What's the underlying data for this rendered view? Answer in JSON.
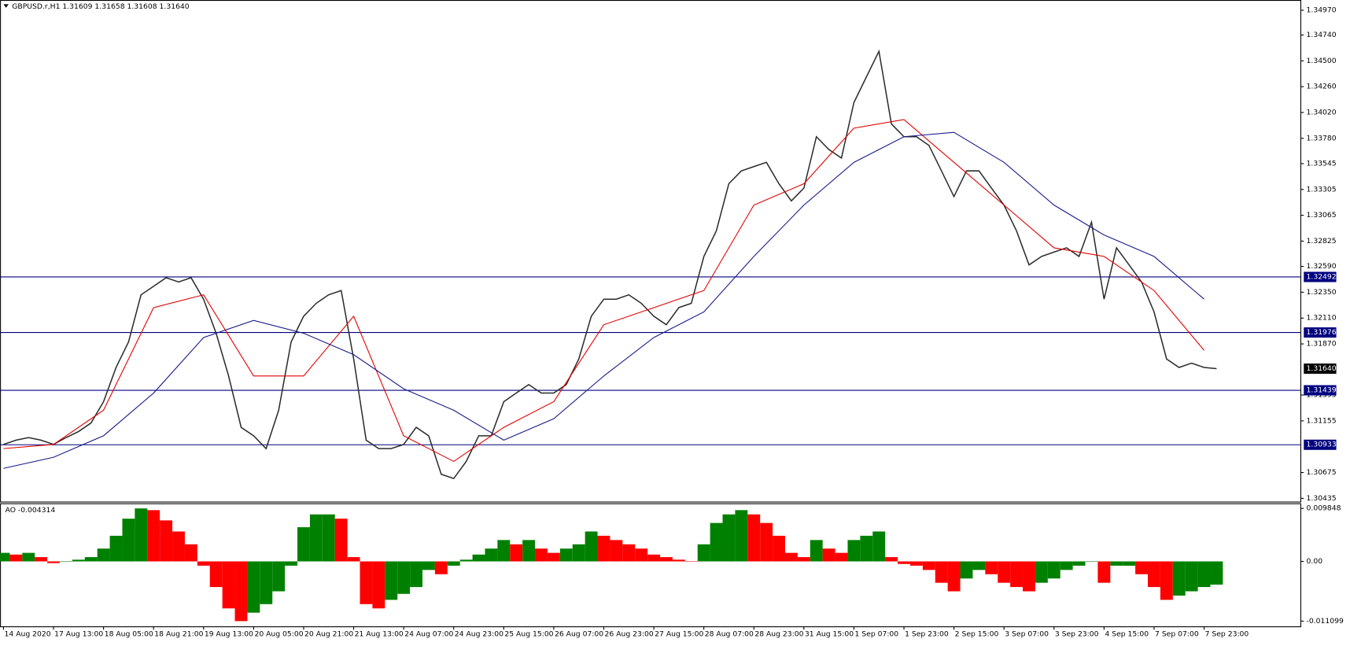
{
  "chart_data": [
    {
      "type": "line",
      "title": "GBPUSD.r,H1  1.31609 1.31658 1.31608 1.31640",
      "xlim": [
        -1.1,
        414.8
      ],
      "ylim": [
        1.30405,
        1.35065
      ],
      "xticks": [
        {
          "value": 0,
          "label": "14 Aug 2020"
        },
        {
          "value": 16,
          "label": "17 Aug 13:00"
        },
        {
          "value": 32,
          "label": "18 Aug 05:00"
        },
        {
          "value": 48,
          "label": "18 Aug 21:00"
        },
        {
          "value": 64,
          "label": "19 Aug 13:00"
        },
        {
          "value": 80,
          "label": "20 Aug 05:00"
        },
        {
          "value": 96,
          "label": "20 Aug 21:00"
        },
        {
          "value": 112,
          "label": "21 Aug 13:00"
        },
        {
          "value": 128,
          "label": "24 Aug 07:00"
        },
        {
          "value": 144,
          "label": "24 Aug 23:00"
        },
        {
          "value": 160,
          "label": "25 Aug 15:00"
        },
        {
          "value": 176,
          "label": "26 Aug 07:00"
        },
        {
          "value": 192,
          "label": "26 Aug 23:00"
        },
        {
          "value": 208,
          "label": "27 Aug 15:00"
        },
        {
          "value": 224,
          "label": "28 Aug 07:00"
        },
        {
          "value": 240,
          "label": "28 Aug 23:00"
        },
        {
          "value": 256,
          "label": "31 Aug 15:00"
        },
        {
          "value": 272,
          "label": "1 Sep 07:00"
        },
        {
          "value": 288,
          "label": "1 Sep 23:00"
        },
        {
          "value": 304,
          "label": "2 Sep 15:00"
        },
        {
          "value": 320,
          "label": "3 Sep 07:00"
        },
        {
          "value": 336,
          "label": "3 Sep 23:00"
        },
        {
          "value": 352,
          "label": "4 Sep 15:00"
        },
        {
          "value": 368,
          "label": "7 Sep 07:00"
        },
        {
          "value": 384,
          "label": "7 Sep 23:00"
        }
      ],
      "yticks": [
        {
          "value": 1.3497,
          "label": "1.34970"
        },
        {
          "value": 1.3474,
          "label": "1.34740"
        },
        {
          "value": 1.345,
          "label": "1.34500"
        },
        {
          "value": 1.3426,
          "label": "1.34260"
        },
        {
          "value": 1.3402,
          "label": "1.34020"
        },
        {
          "value": 1.3378,
          "label": "1.33780"
        },
        1.33545,
        1.33305,
        1.33065,
        1.32825,
        {
          "value": 1.3259,
          "label": "1.32590"
        },
        {
          "value": 1.3235,
          "label": "1.32350"
        },
        {
          "value": 1.3211,
          "label": "1.32110"
        },
        {
          "value": 1.3187,
          "label": "1.31870"
        },
        1.31395,
        1.31155,
        1.30675,
        1.30435
      ],
      "levels": [
        1.32492,
        1.31976,
        1.31439,
        1.30933
      ],
      "level_color": "#00007f",
      "last_price": {
        "value": 1.3164,
        "label": "1.31640"
      },
      "series": [
        {
          "color": "#2b2b2b",
          "x": [
            0,
            4,
            8,
            12,
            16,
            20,
            24,
            28,
            32,
            36,
            40,
            44,
            48,
            52,
            56,
            60,
            64,
            68,
            72,
            76,
            80,
            84,
            88,
            92,
            96,
            100,
            104,
            108,
            112,
            116,
            120,
            124,
            128,
            132,
            136,
            140,
            144,
            148,
            152,
            156,
            160,
            164,
            168,
            172,
            176,
            180,
            184,
            188,
            192,
            196,
            200,
            204,
            208,
            212,
            216,
            220,
            224,
            228,
            232,
            236,
            240,
            244,
            248,
            252,
            256,
            260,
            264,
            268,
            272,
            276,
            280,
            284,
            288,
            292,
            296,
            300,
            304,
            308,
            312,
            316,
            320,
            324,
            328,
            332,
            336,
            340,
            344,
            348,
            352,
            356,
            360,
            364,
            368,
            372,
            376,
            380,
            384,
            388
          ],
          "values": [
            1.30936,
            1.30976,
            1.31,
            1.30976,
            1.30936,
            1.31,
            1.31056,
            1.31135,
            1.31333,
            1.31651,
            1.31889,
            1.32326,
            1.32405,
            1.32485,
            1.32445,
            1.32485,
            1.32286,
            1.31969,
            1.31572,
            1.31095,
            1.31016,
            1.30897,
            1.31254,
            1.31889,
            1.32127,
            1.32247,
            1.32326,
            1.32366,
            1.3173,
            1.30976,
            1.30897,
            1.30897,
            1.30936,
            1.31095,
            1.31016,
            1.30659,
            1.30619,
            1.30778,
            1.31016,
            1.31016,
            1.31333,
            1.31413,
            1.31492,
            1.31413,
            1.31413,
            1.31492,
            1.3173,
            1.32127,
            1.32286,
            1.32286,
            1.32326,
            1.32247,
            1.32127,
            1.32048,
            1.32207,
            1.32247,
            1.32683,
            1.32921,
            1.33358,
            1.33477,
            1.33517,
            1.33557,
            1.33358,
            1.33199,
            1.33318,
            1.33795,
            1.33676,
            1.33596,
            1.34112,
            1.34351,
            1.34589,
            1.33914,
            1.33795,
            1.33795,
            1.33715,
            1.33477,
            1.33239,
            1.33477,
            1.33477,
            1.33318,
            1.3316,
            1.32921,
            1.32604,
            1.32683,
            1.32723,
            1.32763,
            1.32683,
            1.33001,
            1.32286,
            1.32763,
            1.32604,
            1.32445,
            1.32167,
            1.3173,
            1.31651,
            1.31691,
            1.31651,
            1.3164
          ]
        },
        {
          "color": "#e00000",
          "x": [
            0,
            16,
            32,
            48,
            64,
            80,
            96,
            112,
            128,
            144,
            160,
            176,
            192,
            208,
            224,
            240,
            256,
            272,
            288,
            304,
            320,
            336,
            352,
            368,
            384
          ],
          "values": [
            1.30897,
            1.30936,
            1.31254,
            1.32207,
            1.32326,
            1.31572,
            1.31572,
            1.32127,
            1.31016,
            1.30778,
            1.31095,
            1.31333,
            1.32048,
            1.32207,
            1.32366,
            1.3316,
            1.33358,
            1.33874,
            1.33954,
            1.33557,
            1.3316,
            1.32763,
            1.32683,
            1.32366,
            1.3181
          ]
        },
        {
          "color": "#1a1a8c",
          "x": [
            0,
            16,
            32,
            48,
            64,
            80,
            96,
            112,
            128,
            144,
            160,
            176,
            192,
            208,
            224,
            240,
            256,
            272,
            288,
            304,
            320,
            336,
            352,
            368,
            384
          ],
          "values": [
            1.30714,
            1.30817,
            1.31016,
            1.31413,
            1.31929,
            1.32088,
            1.31969,
            1.3177,
            1.31453,
            1.31254,
            1.30976,
            1.31175,
            1.31572,
            1.31929,
            1.32167,
            1.32683,
            1.3316,
            1.33557,
            1.33795,
            1.33835,
            1.33557,
            1.3316,
            1.32882,
            1.32683,
            1.32286
          ]
        }
      ]
    },
    {
      "type": "bar",
      "title": "AO -0.004314",
      "ylim": [
        -0.01207,
        0.0108
      ],
      "yticks": [
        0.009848,
        {
          "value": 0,
          "label": "0.00"
        },
        -0.011099
      ],
      "up_color": "#008000",
      "down_color": "#ff0000",
      "x": [
        0,
        4,
        8,
        12,
        16,
        20,
        24,
        28,
        32,
        36,
        40,
        44,
        48,
        52,
        56,
        60,
        64,
        68,
        72,
        76,
        80,
        84,
        88,
        92,
        96,
        100,
        104,
        108,
        112,
        116,
        120,
        124,
        128,
        132,
        136,
        140,
        144,
        148,
        152,
        156,
        160,
        164,
        168,
        172,
        176,
        180,
        184,
        188,
        192,
        196,
        200,
        204,
        208,
        212,
        216,
        220,
        224,
        228,
        232,
        236,
        240,
        244,
        248,
        252,
        256,
        260,
        264,
        268,
        272,
        276,
        280,
        284,
        288,
        292,
        296,
        300,
        304,
        308,
        312,
        316,
        320,
        324,
        328,
        332,
        336,
        340,
        344,
        348,
        352,
        356,
        360,
        364,
        368,
        372,
        376,
        380,
        384,
        388
      ],
      "values": [
        0.001588,
        0.001271,
        0.001588,
        0.000794,
        -0.000318,
        0,
        0.000318,
        0.000794,
        0.002382,
        0.004765,
        0.007941,
        0.009848,
        0.00953,
        0.007624,
        0.005559,
        0.003177,
        -0.000794,
        -0.004765,
        -0.008736,
        -0.011099,
        -0.00953,
        -0.007941,
        -0.005559,
        -0.000794,
        0.006353,
        0.008736,
        0.008736,
        0.007941,
        0.000794,
        -0.007941,
        -0.008736,
        -0.007147,
        -0.006035,
        -0.004765,
        -0.001588,
        -0.002382,
        -0.000794,
        0.000318,
        0.001271,
        0.002382,
        0.003971,
        0.003177,
        0.003971,
        0.002382,
        0.001588,
        0.002382,
        0.003177,
        0.005559,
        0.004765,
        0.003971,
        0.003177,
        0.002382,
        0.001271,
        0.000794,
        0.000318,
        0,
        0.003177,
        0.007147,
        0.008736,
        0.00953,
        0.008736,
        0.007147,
        0.004765,
        0.001588,
        0.000794,
        0.003971,
        0.002382,
        0.001588,
        0.003971,
        0.004765,
        0.005559,
        0.000794,
        -0.000476,
        -0.000794,
        -0.001588,
        -0.003971,
        -0.005559,
        -0.003177,
        -0.001588,
        -0.002382,
        -0.003971,
        -0.004765,
        -0.005559,
        -0.003971,
        -0.003177,
        -0.001588,
        -0.000794,
        0,
        -0.003971,
        -0.000794,
        -0.000794,
        -0.002382,
        -0.004765,
        -0.007147,
        -0.006353,
        -0.005559,
        -0.004765,
        -0.004314
      ]
    }
  ]
}
